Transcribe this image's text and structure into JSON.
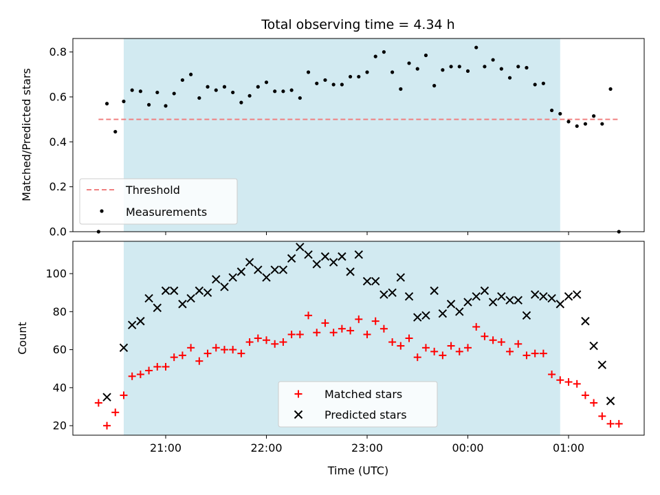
{
  "colors": {
    "shade": "#add8e6",
    "threshold": "#f08080",
    "matched": "#ff0000",
    "predicted": "#000000",
    "measurements": "#000000"
  },
  "chart_data": [
    {
      "type": "scatter",
      "title": "Total observing time = 4.34 h",
      "ylabel": "Matched/Predicted stars",
      "ylim": [
        0,
        0.86
      ],
      "yticks": [
        "0.0",
        "0.2",
        "0.4",
        "0.6",
        "0.8"
      ],
      "x_tick_times": [
        "21:00",
        "22:00",
        "23:00",
        "00:00",
        "01:00"
      ],
      "shaded_interval": [
        "20:35",
        "00:55"
      ],
      "threshold": {
        "name": "Threshold",
        "value": 0.5,
        "x_range": [
          "20:20",
          "01:30"
        ]
      },
      "legend": [
        "Threshold",
        "Measurements"
      ],
      "legend_position": "lower left",
      "series": [
        {
          "name": "Measurements",
          "x": [
            "20:20",
            "20:25",
            "20:30",
            "20:35",
            "20:40",
            "20:45",
            "20:50",
            "20:55",
            "21:00",
            "21:05",
            "21:10",
            "21:15",
            "21:20",
            "21:25",
            "21:30",
            "21:35",
            "21:40",
            "21:45",
            "21:50",
            "21:55",
            "22:00",
            "22:05",
            "22:10",
            "22:15",
            "22:20",
            "22:25",
            "22:30",
            "22:35",
            "22:40",
            "22:45",
            "22:50",
            "22:55",
            "23:00",
            "23:05",
            "23:10",
            "23:15",
            "23:20",
            "23:25",
            "23:30",
            "23:35",
            "23:40",
            "23:45",
            "23:50",
            "23:55",
            "00:00",
            "00:05",
            "00:10",
            "00:15",
            "00:20",
            "00:25",
            "00:30",
            "00:35",
            "00:40",
            "00:45",
            "00:50",
            "00:55",
            "01:00",
            "01:05",
            "01:10",
            "01:15",
            "01:20",
            "01:25",
            "01:30"
          ],
          "y": [
            0.0,
            0.57,
            0.445,
            0.58,
            0.63,
            0.625,
            0.565,
            0.62,
            0.56,
            0.615,
            0.675,
            0.7,
            0.595,
            0.645,
            0.63,
            0.645,
            0.62,
            0.575,
            0.605,
            0.645,
            0.665,
            0.625,
            0.625,
            0.63,
            0.595,
            0.71,
            0.66,
            0.675,
            0.655,
            0.655,
            0.69,
            0.69,
            0.71,
            0.78,
            0.8,
            0.71,
            0.635,
            0.75,
            0.725,
            0.785,
            0.65,
            0.72,
            0.735,
            0.735,
            0.715,
            0.82,
            0.735,
            0.765,
            0.725,
            0.685,
            0.735,
            0.73,
            0.655,
            0.66,
            0.54,
            0.525,
            0.49,
            0.47,
            0.48,
            0.515,
            0.48,
            0.635,
            0.0
          ]
        }
      ]
    },
    {
      "type": "scatter",
      "xlabel": "Time (UTC)",
      "ylabel": "Count",
      "ylim": [
        15,
        117
      ],
      "yticks": [
        "20",
        "40",
        "60",
        "80",
        "100"
      ],
      "x_tick_labels": [
        "21:00",
        "22:00",
        "23:00",
        "00:00",
        "01:00"
      ],
      "legend": [
        "Matched stars",
        "Predicted stars"
      ],
      "legend_position": "lower center",
      "series": [
        {
          "name": "Matched stars",
          "marker": "+",
          "x": [
            "20:20",
            "20:25",
            "20:30",
            "20:35",
            "20:40",
            "20:45",
            "20:50",
            "20:55",
            "21:00",
            "21:05",
            "21:10",
            "21:15",
            "21:20",
            "21:25",
            "21:30",
            "21:35",
            "21:40",
            "21:45",
            "21:50",
            "21:55",
            "22:00",
            "22:05",
            "22:10",
            "22:15",
            "22:20",
            "22:25",
            "22:30",
            "22:35",
            "22:40",
            "22:45",
            "22:50",
            "22:55",
            "23:00",
            "23:05",
            "23:10",
            "23:15",
            "23:20",
            "23:25",
            "23:30",
            "23:35",
            "23:40",
            "23:45",
            "23:50",
            "23:55",
            "00:00",
            "00:05",
            "00:10",
            "00:15",
            "00:20",
            "00:25",
            "00:30",
            "00:35",
            "00:40",
            "00:45",
            "00:50",
            "00:55",
            "01:00",
            "01:05",
            "01:10",
            "01:15",
            "01:20",
            "01:25",
            "01:30"
          ],
          "y": [
            32,
            20,
            27,
            36,
            46,
            47,
            49,
            51,
            51,
            56,
            57,
            61,
            54,
            58,
            61,
            60,
            60,
            58,
            64,
            66,
            65,
            63,
            64,
            68,
            68,
            78,
            69,
            74,
            69,
            71,
            70,
            76,
            68,
            75,
            71,
            64,
            62,
            66,
            56,
            61,
            59,
            57,
            62,
            59,
            61,
            72,
            67,
            65,
            64,
            59,
            63,
            57,
            58,
            58,
            47,
            44,
            43,
            42,
            36,
            32,
            25,
            21,
            21
          ]
        },
        {
          "name": "Predicted stars",
          "marker": "x",
          "x": [
            "20:25",
            "20:35",
            "20:40",
            "20:45",
            "20:50",
            "20:55",
            "21:00",
            "21:05",
            "21:10",
            "21:15",
            "21:20",
            "21:25",
            "21:30",
            "21:35",
            "21:40",
            "21:45",
            "21:50",
            "21:55",
            "22:00",
            "22:05",
            "22:10",
            "22:15",
            "22:20",
            "22:25",
            "22:30",
            "22:35",
            "22:40",
            "22:45",
            "22:50",
            "22:55",
            "23:00",
            "23:05",
            "23:10",
            "23:15",
            "23:20",
            "23:25",
            "23:30",
            "23:35",
            "23:40",
            "23:45",
            "23:50",
            "23:55",
            "00:00",
            "00:05",
            "00:10",
            "00:15",
            "00:20",
            "00:25",
            "00:30",
            "00:35",
            "00:40",
            "00:45",
            "00:50",
            "00:55",
            "01:00",
            "01:05",
            "01:10",
            "01:15",
            "01:20",
            "01:25",
            "01:30"
          ],
          "y": [
            35,
            61,
            73,
            75,
            87,
            82,
            91,
            91,
            84,
            87,
            91,
            90,
            97,
            93,
            98,
            101,
            106,
            102,
            98,
            102,
            102,
            108,
            114,
            110,
            105,
            109,
            106,
            109,
            101,
            110,
            96,
            96,
            89,
            90,
            98,
            88,
            77,
            78,
            91,
            79,
            84,
            80,
            85,
            88,
            91,
            85,
            88,
            86,
            86,
            78,
            89,
            88,
            87,
            84,
            88,
            89,
            75,
            62,
            52,
            33,
            null
          ]
        }
      ]
    }
  ]
}
